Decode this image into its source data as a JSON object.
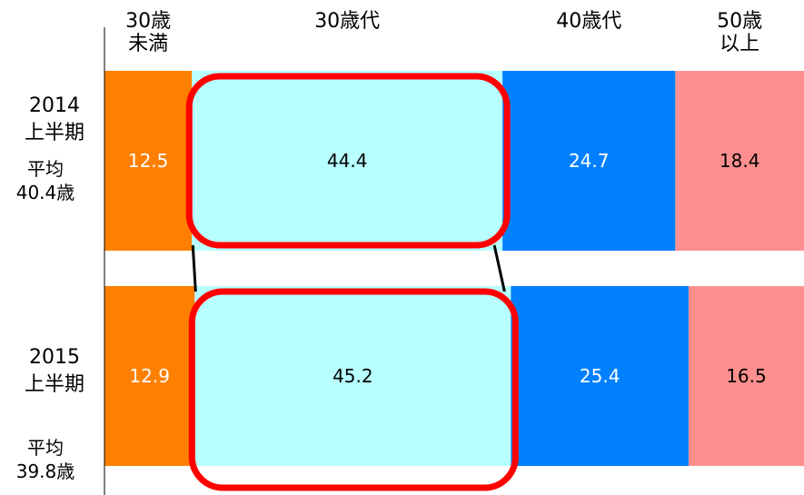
{
  "chart_data": {
    "type": "bar",
    "orientation": "horizontal",
    "stacked": "100%",
    "title": "",
    "xlabel": "",
    "ylabel": "",
    "categories": [
      "30歳\n未満",
      "30歳代",
      "40歳代",
      "50歳\n以上"
    ],
    "rows": [
      {
        "name": "2014\n上半期",
        "sub": "平均\n40.4歳",
        "values": [
          12.5,
          44.4,
          24.7,
          18.4
        ]
      },
      {
        "name": "2015\n上半期",
        "sub": "平均\n39.8歳",
        "values": [
          12.9,
          45.2,
          25.4,
          16.5
        ]
      }
    ],
    "colors": [
      "#ff8000",
      "#b8ffff",
      "#0080ff",
      "#ff8f8f"
    ],
    "label_colors": [
      "#ffffff",
      "#000000",
      "#ffffff",
      "#000000"
    ],
    "highlight": {
      "category_index": 1,
      "color": "#ff0000"
    },
    "grid": false,
    "legend": "top"
  }
}
